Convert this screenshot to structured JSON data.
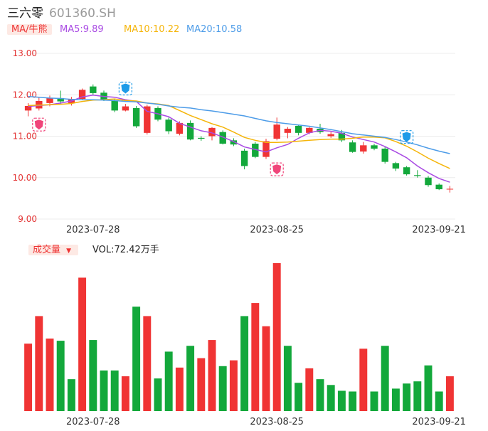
{
  "header": {
    "name": "三六零",
    "code": "601360.SH"
  },
  "ma_legend": {
    "tag": "MA/牛熊",
    "ma5": "MA5:9.89",
    "ma10": "MA10:10.22",
    "ma20": "MA20:10.58"
  },
  "vol_legend": {
    "tag": "成交量",
    "tag_caret": "▼",
    "value": "VOL:72.42万手"
  },
  "colors": {
    "up": "#f03434",
    "down": "#13a83b",
    "ma5": "#a94be3",
    "ma10": "#f5b50a",
    "ma20": "#4d9ce8",
    "grid": "#ececec",
    "axis_text": "#e33333",
    "date_text": "#333333",
    "signal_red": "#f0457a",
    "signal_blue": "#1e9be8"
  },
  "chart_data": [
    {
      "type": "candlestick",
      "ylim": [
        9.0,
        13.0
      ],
      "y_ticks": [
        "13.00",
        "12.00",
        "11.00",
        "10.00",
        "9.00"
      ],
      "x_tick_labels": [
        {
          "index": 6,
          "label": "2023-07-28"
        },
        {
          "index": 23,
          "label": "2023-08-25"
        },
        {
          "index": 38,
          "label": "2023-09-21"
        }
      ],
      "candles": [
        {
          "o": 11.62,
          "c": 11.73,
          "h": 11.8,
          "l": 11.48
        },
        {
          "o": 11.67,
          "c": 11.85,
          "h": 11.93,
          "l": 11.62
        },
        {
          "o": 11.8,
          "c": 11.92,
          "h": 11.98,
          "l": 11.72
        },
        {
          "o": 11.92,
          "c": 11.84,
          "h": 12.1,
          "l": 11.78
        },
        {
          "o": 11.8,
          "c": 11.9,
          "h": 11.95,
          "l": 11.74
        },
        {
          "o": 11.9,
          "c": 12.12,
          "h": 12.15,
          "l": 11.88
        },
        {
          "o": 12.2,
          "c": 12.04,
          "h": 12.25,
          "l": 12.0
        },
        {
          "o": 12.05,
          "c": 11.88,
          "h": 12.1,
          "l": 11.85
        },
        {
          "o": 11.86,
          "c": 11.62,
          "h": 11.9,
          "l": 11.58
        },
        {
          "o": 11.62,
          "c": 11.72,
          "h": 11.78,
          "l": 11.6
        },
        {
          "o": 11.68,
          "c": 11.24,
          "h": 11.73,
          "l": 11.2
        },
        {
          "o": 11.08,
          "c": 11.72,
          "h": 11.76,
          "l": 11.04
        },
        {
          "o": 11.68,
          "c": 11.4,
          "h": 11.72,
          "l": 11.36
        },
        {
          "o": 11.4,
          "c": 11.12,
          "h": 11.45,
          "l": 11.05
        },
        {
          "o": 11.06,
          "c": 11.32,
          "h": 11.36,
          "l": 11.02
        },
        {
          "o": 11.32,
          "c": 10.92,
          "h": 11.38,
          "l": 10.9
        },
        {
          "o": 10.96,
          "c": 10.94,
          "h": 11.0,
          "l": 10.89
        },
        {
          "o": 11.0,
          "c": 11.2,
          "h": 11.22,
          "l": 10.9
        },
        {
          "o": 11.1,
          "c": 10.82,
          "h": 11.14,
          "l": 10.8
        },
        {
          "o": 10.9,
          "c": 10.8,
          "h": 10.95,
          "l": 10.76
        },
        {
          "o": 10.65,
          "c": 10.28,
          "h": 10.7,
          "l": 10.2
        },
        {
          "o": 10.82,
          "c": 10.5,
          "h": 10.86,
          "l": 10.47
        },
        {
          "o": 10.5,
          "c": 10.88,
          "h": 10.94,
          "l": 10.45
        },
        {
          "o": 10.94,
          "c": 11.28,
          "h": 11.45,
          "l": 10.9
        },
        {
          "o": 11.08,
          "c": 11.18,
          "h": 11.22,
          "l": 10.95
        },
        {
          "o": 11.25,
          "c": 11.08,
          "h": 11.28,
          "l": 11.02
        },
        {
          "o": 11.08,
          "c": 11.2,
          "h": 11.22,
          "l": 11.05
        },
        {
          "o": 11.18,
          "c": 11.1,
          "h": 11.3,
          "l": 11.06
        },
        {
          "o": 11.0,
          "c": 11.05,
          "h": 11.1,
          "l": 10.96
        },
        {
          "o": 11.08,
          "c": 10.9,
          "h": 11.15,
          "l": 10.86
        },
        {
          "o": 10.85,
          "c": 10.62,
          "h": 10.9,
          "l": 10.6
        },
        {
          "o": 10.63,
          "c": 10.78,
          "h": 10.86,
          "l": 10.58
        },
        {
          "o": 10.78,
          "c": 10.7,
          "h": 10.82,
          "l": 10.66
        },
        {
          "o": 10.7,
          "c": 10.38,
          "h": 10.76,
          "l": 10.34
        },
        {
          "o": 10.35,
          "c": 10.22,
          "h": 10.38,
          "l": 10.16
        },
        {
          "o": 10.25,
          "c": 10.08,
          "h": 10.28,
          "l": 10.05
        },
        {
          "o": 10.06,
          "c": 10.04,
          "h": 10.18,
          "l": 10.0
        },
        {
          "o": 10.0,
          "c": 9.82,
          "h": 10.04,
          "l": 9.78
        },
        {
          "o": 9.83,
          "c": 9.72,
          "h": 9.86,
          "l": 9.7
        },
        {
          "o": 9.72,
          "c": 9.73,
          "h": 9.8,
          "l": 9.64
        }
      ],
      "ma5": [
        11.72,
        11.74,
        11.76,
        11.8,
        11.85,
        11.95,
        11.99,
        11.96,
        11.94,
        11.88,
        11.84,
        11.6,
        11.54,
        11.47,
        11.31,
        11.22,
        11.13,
        11.08,
        10.98,
        10.87,
        10.74,
        10.68,
        10.62,
        10.72,
        10.8,
        10.95,
        11.08,
        11.14,
        11.12,
        11.07,
        10.98,
        10.92,
        10.86,
        10.75,
        10.62,
        10.48,
        10.28,
        10.12,
        9.98,
        9.89
      ],
      "ma10": [
        11.74,
        11.75,
        11.76,
        11.77,
        11.79,
        11.84,
        11.87,
        11.88,
        11.9,
        11.86,
        11.85,
        11.8,
        11.78,
        11.74,
        11.62,
        11.5,
        11.4,
        11.3,
        11.22,
        11.1,
        10.97,
        10.9,
        10.85,
        10.85,
        10.86,
        10.88,
        10.9,
        10.92,
        10.93,
        10.93,
        10.95,
        10.98,
        10.98,
        10.96,
        10.87,
        10.76,
        10.62,
        10.47,
        10.34,
        10.22
      ],
      "ma20": [
        11.96,
        11.94,
        11.92,
        11.91,
        11.89,
        11.88,
        11.88,
        11.87,
        11.86,
        11.84,
        11.83,
        11.8,
        11.77,
        11.73,
        11.7,
        11.68,
        11.64,
        11.61,
        11.57,
        11.53,
        11.49,
        11.43,
        11.37,
        11.33,
        11.3,
        11.27,
        11.24,
        11.2,
        11.16,
        11.11,
        11.06,
        11.03,
        11.0,
        10.97,
        10.92,
        10.86,
        10.79,
        10.71,
        10.64,
        10.58
      ],
      "signals": [
        {
          "index": 1,
          "kind": "buy",
          "price": 11.28
        },
        {
          "index": 9,
          "kind": "sell",
          "price": 12.15
        },
        {
          "index": 23,
          "kind": "buy",
          "price": 10.2
        },
        {
          "index": 35,
          "kind": "sell",
          "price": 10.98
        }
      ]
    },
    {
      "type": "bar",
      "title": "VOL:72.42万手",
      "x_tick_labels": [
        {
          "index": 6,
          "label": "2023-07-28"
        },
        {
          "index": 23,
          "label": "2023-08-25"
        },
        {
          "index": 38,
          "label": "2023-09-21"
        }
      ],
      "values": [
        93,
        131,
        100,
        97,
        44,
        184,
        98,
        56,
        56,
        48,
        144,
        131,
        45,
        82,
        60,
        90,
        73,
        98,
        62,
        70,
        131,
        149,
        117,
        204,
        90,
        39,
        59,
        44,
        36,
        28,
        27,
        86,
        27,
        90,
        31,
        38,
        41,
        63,
        27,
        48
      ],
      "directions": [
        "up",
        "up",
        "up",
        "down",
        "down",
        "up",
        "down",
        "down",
        "down",
        "up",
        "down",
        "up",
        "down",
        "down",
        "up",
        "down",
        "up",
        "up",
        "down",
        "up",
        "down",
        "up",
        "up",
        "up",
        "down",
        "down",
        "up",
        "down",
        "down",
        "down",
        "down",
        "up",
        "down",
        "down",
        "down",
        "down",
        "down",
        "down",
        "down",
        "up"
      ]
    }
  ]
}
